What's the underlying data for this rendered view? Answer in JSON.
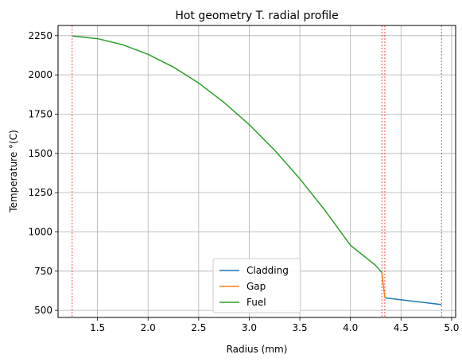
{
  "chart_data": {
    "type": "line",
    "title": "Hot geometry T. radial profile",
    "xlabel": "Radius (mm)",
    "ylabel": "Temperature °(C)",
    "xlim": [
      1.11,
      5.04
    ],
    "ylim": [
      455,
      2315
    ],
    "xticks": [
      1.5,
      2.0,
      2.5,
      3.0,
      3.5,
      4.0,
      4.5,
      5.0
    ],
    "xtick_labels": [
      "1.5",
      "2.0",
      "2.5",
      "3.0",
      "3.5",
      "4.0",
      "4.5",
      "5.0"
    ],
    "yticks": [
      500,
      750,
      1000,
      1250,
      1500,
      1750,
      2000,
      2250
    ],
    "ytick_labels": [
      "500",
      "750",
      "1000",
      "1250",
      "1500",
      "1750",
      "2000",
      "2250"
    ],
    "grid": true,
    "legend_position": "lower center",
    "vlines": {
      "color": "#ff0000",
      "style": "dashed",
      "x": [
        1.25,
        4.31,
        4.34,
        4.9
      ]
    },
    "series": [
      {
        "name": "Cladding",
        "color": "#1f77b4",
        "x": [
          4.34,
          4.9
        ],
        "y": [
          580,
          537
        ]
      },
      {
        "name": "Gap",
        "color": "#ff7f0e",
        "x": [
          4.31,
          4.34
        ],
        "y": [
          742,
          580
        ]
      },
      {
        "name": "Fuel",
        "color": "#2ca02c",
        "x": [
          1.25,
          1.5,
          1.75,
          2.0,
          2.25,
          2.5,
          2.75,
          3.0,
          3.25,
          3.5,
          3.75,
          4.0,
          4.25,
          4.31
        ],
        "y": [
          2248,
          2231,
          2192,
          2131,
          2050,
          1948,
          1825,
          1683,
          1521,
          1338,
          1136,
          915,
          786,
          742
        ]
      }
    ]
  }
}
